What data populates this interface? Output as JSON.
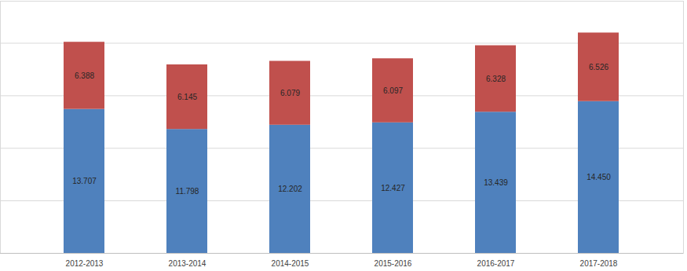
{
  "chart_data": {
    "type": "bar",
    "stacked": true,
    "data_labels": true,
    "grid": true,
    "tick_labels": "x",
    "categories": [
      "2012-2013",
      "2013-2014",
      "2014-2015",
      "2015-2016",
      "2016-2017",
      "2017-2018"
    ],
    "series": [
      {
        "color": "#4f81bd",
        "values": [
          13.707,
          11.798,
          12.202,
          12.427,
          13.439,
          14.45
        ],
        "value_labels": [
          "13.707",
          "11.798",
          "12.202",
          "12.427",
          "13.439",
          "14.450"
        ]
      },
      {
        "color": "#c0504d",
        "values": [
          6.388,
          6.145,
          6.079,
          6.097,
          6.328,
          6.526
        ]
      }
    ],
    "ylim": [
      0,
      24
    ],
    "yticks": [
      0,
      5,
      10,
      15,
      20
    ]
  }
}
